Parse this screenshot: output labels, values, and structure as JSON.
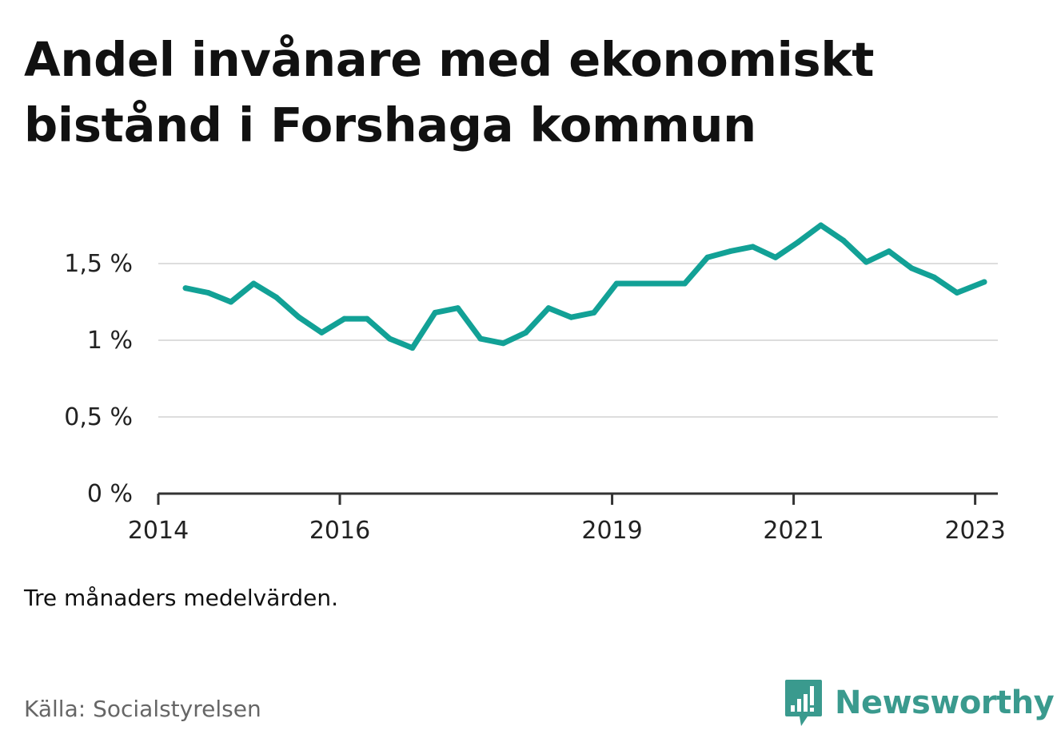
{
  "title": {
    "line1": "Andel invånare med ekonomiskt",
    "line2": "bistånd i Forshaga kommun"
  },
  "note": "Tre månaders medelvärden.",
  "source": "Källa: Socialstyrelsen",
  "brand": {
    "name": "Newsworthy",
    "icon": "bar-chart-speech-bubble-icon",
    "color": "#3a9a8e"
  },
  "colors": {
    "line": "#12a196",
    "grid": "#dddddd",
    "axis": "#333333",
    "text": "#111111"
  },
  "chart_data": {
    "type": "line",
    "xlim": [
      2014.0,
      2023.25
    ],
    "ylim": [
      0,
      1.5
    ],
    "y_ticks": [
      {
        "value": 0,
        "label": "0 %"
      },
      {
        "value": 0.5,
        "label": "0,5 %"
      },
      {
        "value": 1.0,
        "label": "1 %"
      },
      {
        "value": 1.5,
        "label": "1,5 %"
      }
    ],
    "x_ticks": [
      {
        "value": 2014,
        "label": "2014"
      },
      {
        "value": 2016,
        "label": "2016"
      },
      {
        "value": 2019,
        "label": "2019"
      },
      {
        "value": 2021,
        "label": "2021"
      },
      {
        "value": 2023,
        "label": "2023"
      }
    ],
    "grid": true,
    "series": [
      {
        "x": [
          2014.3,
          2014.55,
          2014.8,
          2015.05,
          2015.3,
          2015.55,
          2015.8,
          2016.05,
          2016.3,
          2016.55,
          2016.8,
          2017.05,
          2017.3,
          2017.55,
          2017.8,
          2018.05,
          2018.3,
          2018.55,
          2018.8,
          2019.05,
          2019.3,
          2019.55,
          2019.8,
          2020.05,
          2020.3,
          2020.55,
          2020.8,
          2021.05,
          2021.3,
          2021.55,
          2021.8,
          2022.05,
          2022.3,
          2022.55,
          2022.8,
          2023.1
        ],
        "values": [
          1.34,
          1.31,
          1.25,
          1.37,
          1.28,
          1.15,
          1.05,
          1.14,
          1.14,
          1.01,
          0.95,
          1.18,
          1.21,
          1.01,
          0.98,
          1.05,
          1.21,
          1.15,
          1.18,
          1.37,
          1.37,
          1.37,
          1.37,
          1.54,
          1.58,
          1.61,
          1.54,
          1.64,
          1.75,
          1.65,
          1.51,
          1.58,
          1.47,
          1.41,
          1.31,
          1.38
        ]
      }
    ]
  }
}
